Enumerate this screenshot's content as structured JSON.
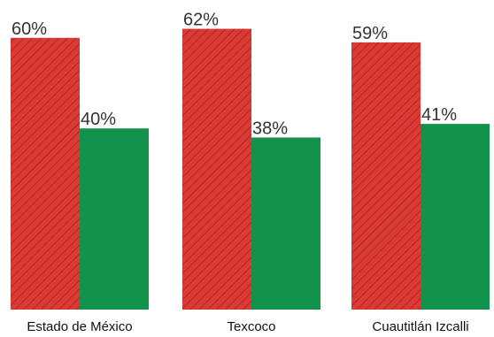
{
  "chart_data": {
    "type": "bar",
    "categories": [
      "Estado de México",
      "Texcoco",
      "Cuautitlán Izcalli"
    ],
    "series": [
      {
        "values": [
          60,
          62,
          59
        ],
        "color": "#d93a33",
        "pattern": "diagonal-hatch"
      },
      {
        "values": [
          40,
          38,
          41
        ],
        "color": "#12924a"
      }
    ],
    "value_labels": [
      [
        "60%",
        "62%",
        "59%"
      ],
      [
        "40%",
        "38%",
        "41%"
      ]
    ],
    "ylim": [
      0,
      62
    ],
    "grid": false,
    "legend": "none"
  }
}
